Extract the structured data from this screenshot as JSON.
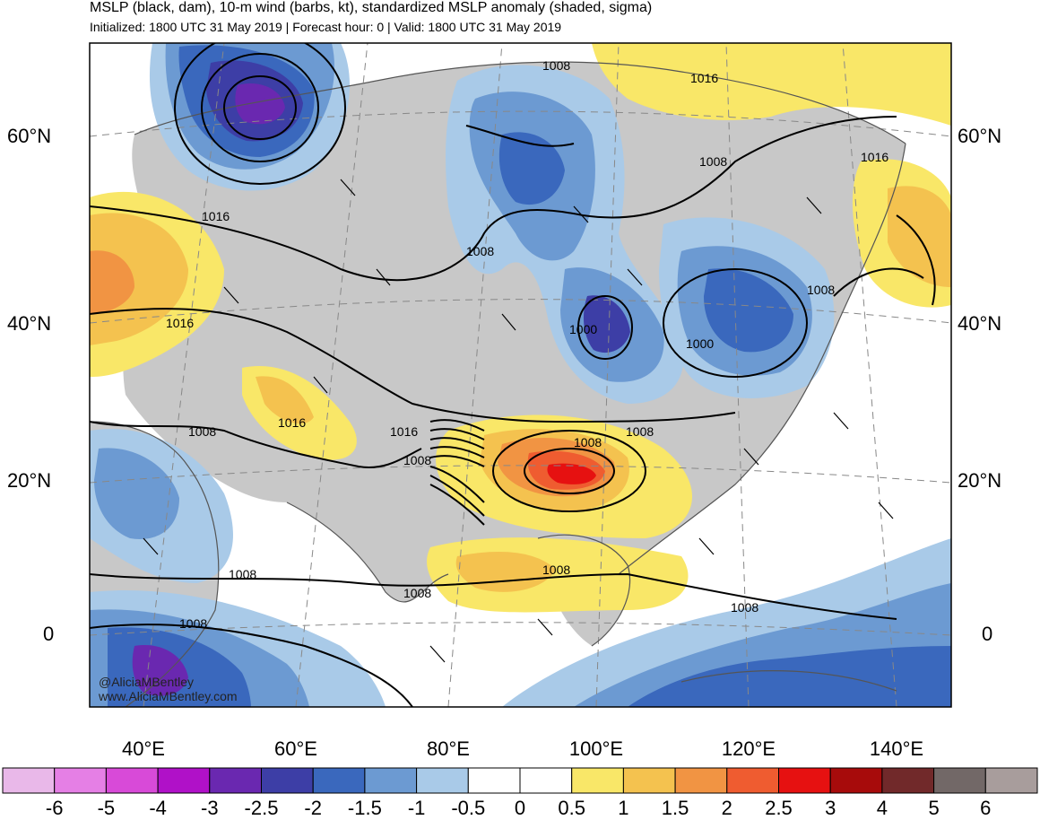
{
  "header": {
    "title": "MSLP (black, dam), 10-m wind (barbs, kt), standardized MSLP anomaly (shaded, sigma)",
    "subtitle": "Initialized: 1800 UTC 31 May 2019 | Forecast hour: 0 | Valid: 1800 UTC 31 May 2019"
  },
  "map": {
    "lat_labels": [
      "60°N",
      "40°N",
      "20°N",
      "0"
    ],
    "lon_labels": [
      "40°E",
      "60°E",
      "80°E",
      "100°E",
      "120°E",
      "140°E"
    ],
    "contour_labels": [
      "1008",
      "1016",
      "1008",
      "1016",
      "1008",
      "1016",
      "1000",
      "1000",
      "1008",
      "1016",
      "1016",
      "1008",
      "1016",
      "1008",
      "1008",
      "1008",
      "1008",
      "1008",
      "1008",
      "1008"
    ],
    "credit_twitter": "@AliciaMBentley",
    "credit_web": "www.AliciaMBentley.com"
  },
  "colorbar": {
    "labels": [
      "-6",
      "-5",
      "-4",
      "-3",
      "-2.5",
      "-2",
      "-1.5",
      "-1",
      "-0.5",
      "0",
      "0.5",
      "1",
      "1.5",
      "2",
      "2.5",
      "3",
      "4",
      "5",
      "6"
    ],
    "colors": [
      "#e9b8e9",
      "#e57fe5",
      "#d84ad8",
      "#b011c8",
      "#6a28b0",
      "#3d3ea6",
      "#3a68bd",
      "#6c9ad2",
      "#a9cae8",
      "#ffffff",
      "#ffffff",
      "#f9e768",
      "#f4c24f",
      "#f19443",
      "#ef5c30",
      "#e61111",
      "#a70b0b",
      "#71292a",
      "#726867",
      "#a89d9c"
    ]
  }
}
